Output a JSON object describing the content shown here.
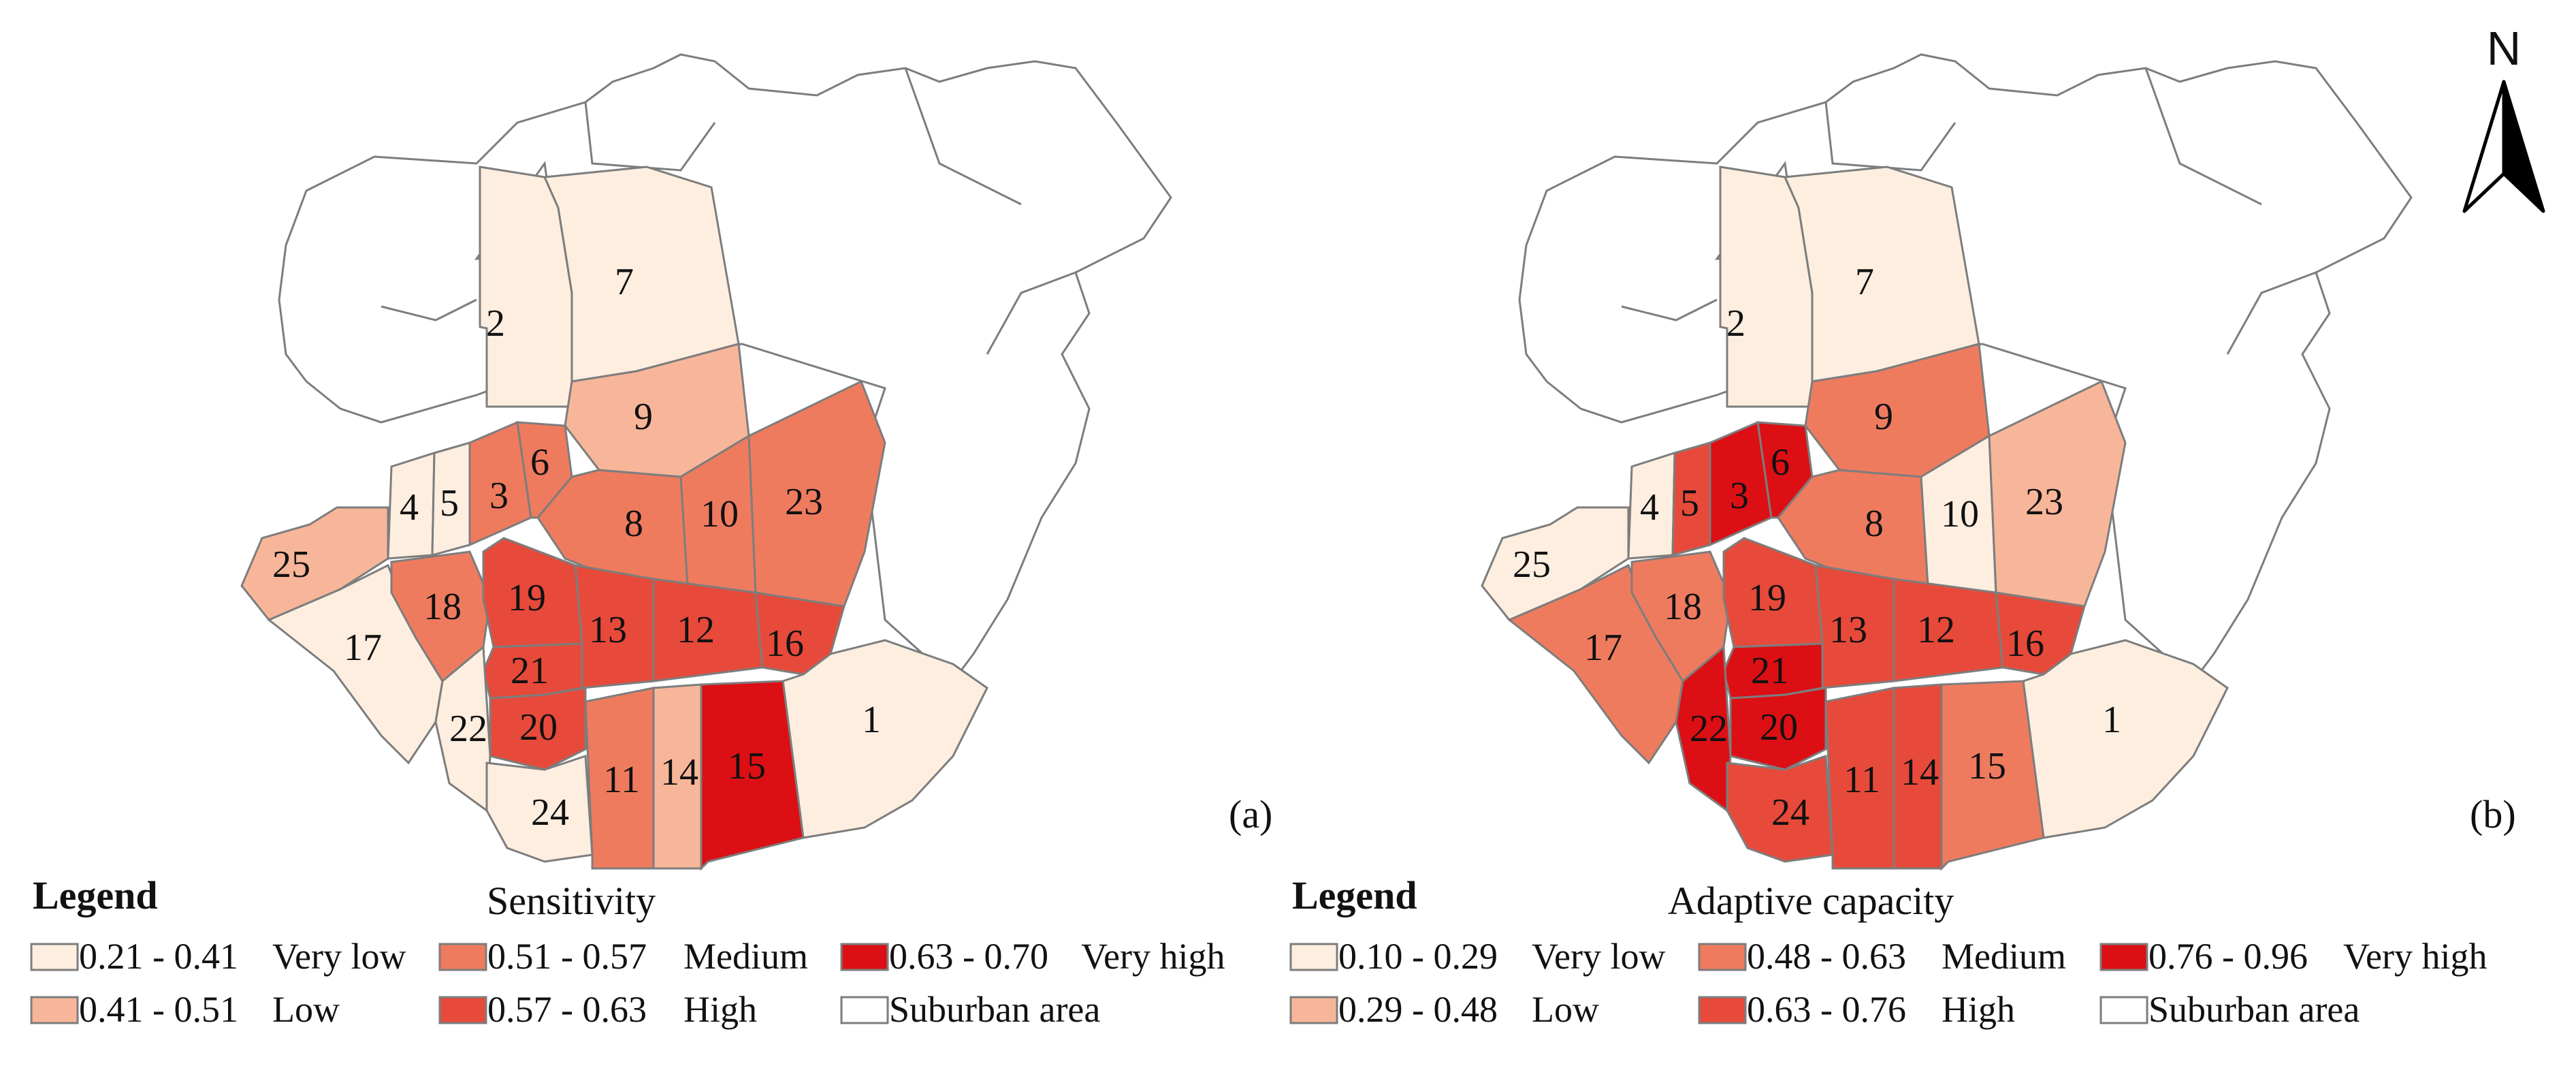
{
  "colors": {
    "very_low": "#fdeee0",
    "low": "#f7b69a",
    "medium": "#ef7b5f",
    "high": "#e74a3a",
    "very_high": "#dc0f14",
    "suburban": "#ffffff",
    "boundary": "#7d7d7d"
  },
  "north_label": "N",
  "panels": [
    {
      "tag": "(a)",
      "legend_title": "Legend",
      "subtitle": "Sensitivity",
      "legend": [
        {
          "range": "0.21 - 0.41",
          "label": "Very low",
          "cls": "very_low"
        },
        {
          "range": "0.41 - 0.51",
          "label": "Low",
          "cls": "low"
        },
        {
          "range": "0.51 - 0.57",
          "label": "Medium",
          "cls": "medium"
        },
        {
          "range": "0.57 - 0.63",
          "label": "High",
          "cls": "high"
        },
        {
          "range": "0.63 - 0.70",
          "label": "Very high",
          "cls": "very_high"
        },
        {
          "range": "",
          "label": "Suburban area",
          "cls": "suburban"
        }
      ],
      "districts": {
        "1": "very_low",
        "2": "very_low",
        "3": "medium",
        "4": "very_low",
        "5": "very_low",
        "6": "medium",
        "7": "very_low",
        "8": "medium",
        "9": "low",
        "10": "medium",
        "11": "medium",
        "12": "high",
        "13": "high",
        "14": "low",
        "15": "very_high",
        "16": "high",
        "17": "very_low",
        "18": "medium",
        "19": "high",
        "20": "high",
        "21": "high",
        "22": "very_low",
        "23": "medium",
        "24": "very_low",
        "25": "low"
      }
    },
    {
      "tag": "(b)",
      "legend_title": "Legend",
      "subtitle": "Adaptive capacity",
      "legend": [
        {
          "range": "0.10 - 0.29",
          "label": "Very low",
          "cls": "very_low"
        },
        {
          "range": "0.29 - 0.48",
          "label": "Low",
          "cls": "low"
        },
        {
          "range": "0.48 - 0.63",
          "label": "Medium",
          "cls": "medium"
        },
        {
          "range": "0.63 - 0.76",
          "label": "High",
          "cls": "high"
        },
        {
          "range": "0.76 - 0.96",
          "label": "Very high",
          "cls": "very_high"
        },
        {
          "range": "",
          "label": "Suburban area",
          "cls": "suburban"
        }
      ],
      "districts": {
        "1": "very_low",
        "2": "very_low",
        "3": "very_high",
        "4": "very_low",
        "5": "high",
        "6": "very_high",
        "7": "very_low",
        "8": "medium",
        "9": "medium",
        "10": "very_low",
        "11": "high",
        "12": "high",
        "13": "high",
        "14": "high",
        "15": "medium",
        "16": "high",
        "17": "medium",
        "18": "medium",
        "19": "high",
        "20": "very_high",
        "21": "very_high",
        "22": "very_high",
        "23": "low",
        "24": "high",
        "25": "very_low"
      }
    }
  ]
}
